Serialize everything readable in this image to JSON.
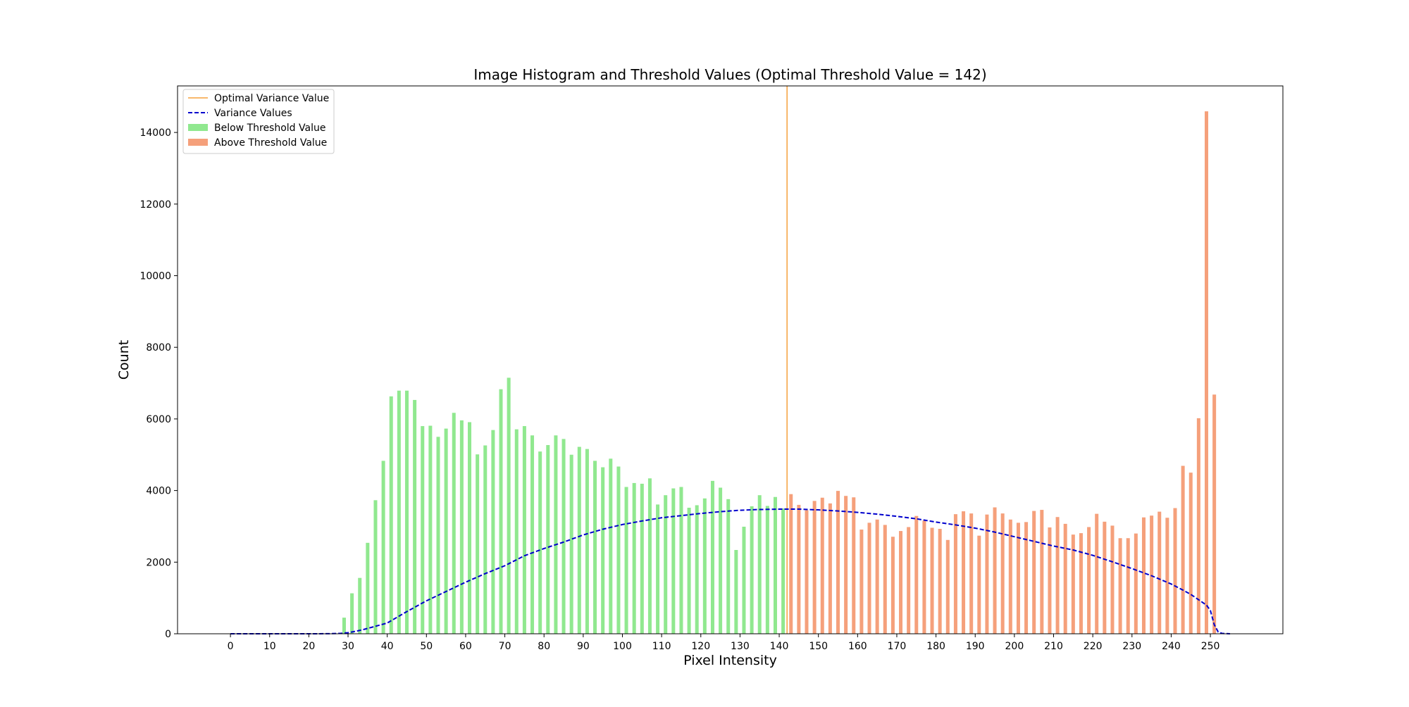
{
  "chart_data": {
    "type": "bar",
    "title": "Image Histogram and Threshold Values (Optimal Threshold Value = 142)",
    "xlabel": "Pixel Intensity",
    "ylabel": "Count",
    "xlim": [
      -13.5,
      268.5
    ],
    "ylim": [
      0,
      15300
    ],
    "x_ticks": [
      0,
      10,
      20,
      30,
      40,
      50,
      60,
      70,
      80,
      90,
      100,
      110,
      120,
      130,
      140,
      150,
      160,
      170,
      180,
      190,
      200,
      210,
      220,
      230,
      240,
      250
    ],
    "y_ticks": [
      0,
      2000,
      4000,
      6000,
      8000,
      10000,
      12000,
      14000
    ],
    "grid": false,
    "legend_position": "upper-left",
    "threshold": 142,
    "colors": {
      "below": "#90e88f",
      "above": "#f5a07b",
      "variance_line": "#0000cd",
      "threshold_line": "#f5a03c"
    },
    "legend": [
      {
        "label": "Optimal Variance Value",
        "kind": "line"
      },
      {
        "label": "Variance Values",
        "kind": "dashed"
      },
      {
        "label": "Below Threshold Value",
        "kind": "patch-below"
      },
      {
        "label": "Above Threshold Value",
        "kind": "patch-above"
      }
    ],
    "series": [
      {
        "name": "Below Threshold Value",
        "x": [
          29,
          31,
          33,
          35,
          37,
          39,
          41,
          43,
          45,
          47,
          49,
          51,
          53,
          55,
          57,
          59,
          61,
          63,
          65,
          67,
          69,
          71,
          73,
          75,
          77,
          79,
          81,
          83,
          85,
          87,
          89,
          91,
          93,
          95,
          97,
          99,
          101,
          103,
          105,
          107,
          109,
          111,
          113,
          115,
          117,
          119,
          121,
          123,
          125,
          127,
          129,
          131,
          133,
          135,
          137,
          139,
          141
        ],
        "values": [
          450,
          1130,
          1560,
          2540,
          3730,
          4830,
          6630,
          6790,
          6790,
          6530,
          5800,
          5810,
          5500,
          5730,
          6170,
          5960,
          5910,
          5010,
          5260,
          5690,
          6830,
          7150,
          5710,
          5800,
          5540,
          5090,
          5270,
          5540,
          5440,
          5000,
          5220,
          5160,
          4830,
          4650,
          4890,
          4670,
          4100,
          4210,
          4190,
          4340,
          3610,
          3870,
          4060,
          4100,
          3520,
          3590,
          3780,
          4270,
          4080,
          3760,
          2340,
          2990,
          3560,
          3870,
          3570,
          3820,
          3500
        ]
      },
      {
        "name": "Above Threshold Value",
        "x": [
          143,
          145,
          147,
          149,
          151,
          153,
          155,
          157,
          159,
          161,
          163,
          165,
          167,
          169,
          171,
          173,
          175,
          177,
          179,
          181,
          183,
          185,
          187,
          189,
          191,
          193,
          195,
          197,
          199,
          201,
          203,
          205,
          207,
          209,
          211,
          213,
          215,
          217,
          219,
          221,
          223,
          225,
          227,
          229,
          231,
          233,
          235,
          237,
          239,
          241,
          243,
          245,
          247,
          249,
          251
        ],
        "values": [
          3900,
          3600,
          3450,
          3710,
          3800,
          3640,
          3990,
          3850,
          3810,
          2910,
          3100,
          3190,
          3040,
          2710,
          2870,
          2980,
          3290,
          3160,
          2960,
          2930,
          2620,
          3340,
          3420,
          3360,
          2740,
          3330,
          3530,
          3360,
          3190,
          3100,
          3120,
          3430,
          3460,
          2970,
          3260,
          3070,
          2770,
          2810,
          2980,
          3350,
          3130,
          3020,
          2670,
          2670,
          2800,
          3250,
          3300,
          3410,
          3240,
          3510,
          4690,
          4500,
          6020,
          14590,
          6680
        ]
      },
      {
        "name": "Variance Values",
        "type": "line",
        "x": [
          0,
          10,
          20,
          25,
          28,
          30,
          32,
          34,
          36,
          38,
          40,
          45,
          50,
          55,
          60,
          65,
          70,
          75,
          80,
          85,
          90,
          95,
          100,
          105,
          110,
          115,
          120,
          125,
          130,
          135,
          140,
          142,
          145,
          150,
          155,
          160,
          165,
          170,
          175,
          180,
          185,
          190,
          195,
          200,
          205,
          210,
          215,
          220,
          225,
          230,
          235,
          240,
          243,
          245,
          247,
          249,
          250,
          251,
          252,
          253,
          255
        ],
        "values": [
          0,
          0,
          0,
          2,
          10,
          30,
          70,
          120,
          180,
          240,
          300,
          620,
          920,
          1180,
          1440,
          1680,
          1900,
          2180,
          2380,
          2560,
          2760,
          2920,
          3050,
          3150,
          3240,
          3300,
          3360,
          3410,
          3450,
          3470,
          3480,
          3482,
          3480,
          3460,
          3430,
          3390,
          3340,
          3280,
          3210,
          3120,
          3040,
          2950,
          2840,
          2710,
          2580,
          2450,
          2340,
          2190,
          2010,
          1820,
          1620,
          1390,
          1220,
          1100,
          950,
          800,
          650,
          250,
          50,
          10,
          0
        ]
      }
    ]
  }
}
